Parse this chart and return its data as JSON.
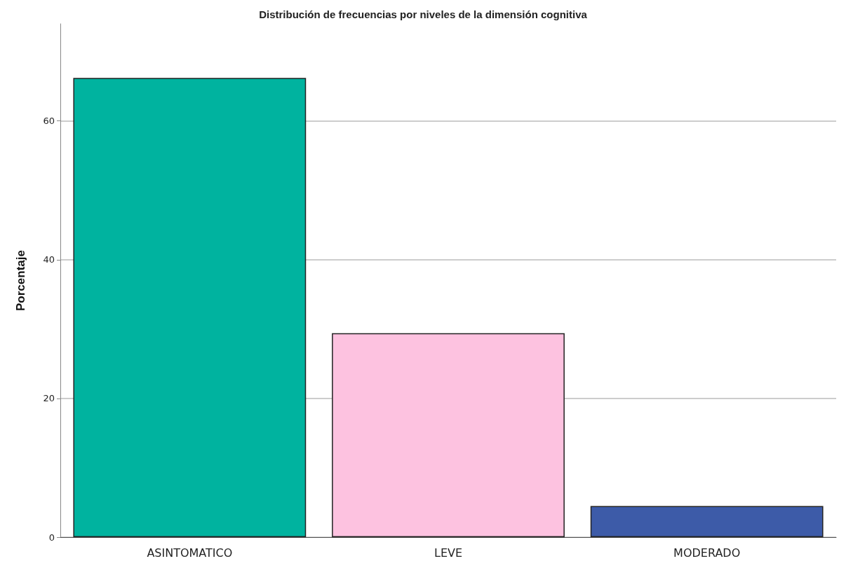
{
  "chart_data": {
    "type": "bar",
    "title": "Distribución de frecuencias por niveles de la dimensión cognitiva",
    "ylabel": "Porcentaje",
    "categories": [
      "ASINTOMATICO",
      "LEVE",
      "MODERADO"
    ],
    "values": [
      66.2,
      29.4,
      4.5
    ],
    "colors": [
      "#00b39f",
      "#fdc2e0",
      "#3d5ba8"
    ],
    "ylim": [
      0,
      74
    ],
    "yticks": [
      0,
      20,
      40,
      60
    ],
    "grid": "y"
  }
}
